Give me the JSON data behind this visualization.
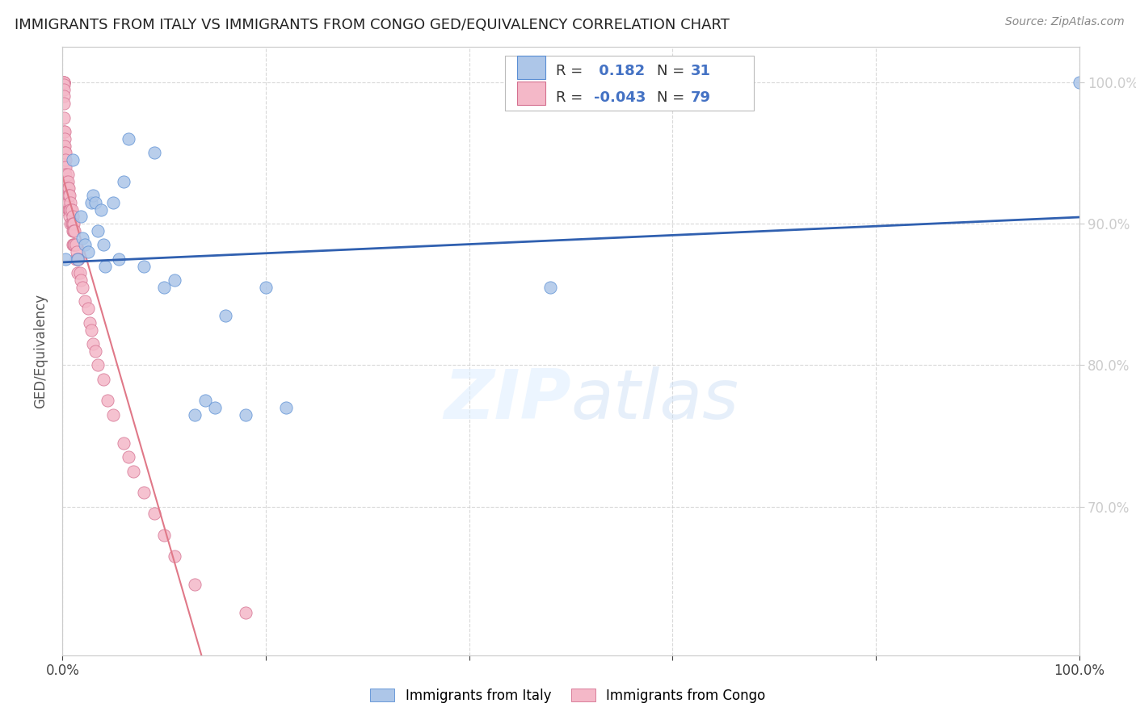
{
  "title": "IMMIGRANTS FROM ITALY VS IMMIGRANTS FROM CONGO GED/EQUIVALENCY CORRELATION CHART",
  "source": "Source: ZipAtlas.com",
  "ylabel": "GED/Equivalency",
  "xmin": 0.0,
  "xmax": 1.0,
  "ymin": 0.595,
  "ymax": 1.025,
  "yticks": [
    0.7,
    0.8,
    0.9,
    1.0
  ],
  "ytick_labels": [
    "70.0%",
    "80.0%",
    "90.0%",
    "100.0%"
  ],
  "R_italy": 0.182,
  "N_italy": 31,
  "R_congo": -0.043,
  "N_congo": 79,
  "color_italy": "#adc6e8",
  "color_congo": "#f4b8c8",
  "edge_italy": "#5b8fd4",
  "edge_congo": "#d47090",
  "line_italy_color": "#3060b0",
  "line_congo_color": "#e8a0b0",
  "italy_x": [
    0.003,
    0.01,
    0.015,
    0.018,
    0.02,
    0.022,
    0.025,
    0.028,
    0.03,
    0.032,
    0.035,
    0.038,
    0.04,
    0.042,
    0.05,
    0.055,
    0.06,
    0.065,
    0.08,
    0.09,
    0.1,
    0.11,
    0.13,
    0.14,
    0.15,
    0.16,
    0.18,
    0.2,
    0.22,
    0.48,
    1.0
  ],
  "italy_y": [
    0.875,
    0.945,
    0.875,
    0.905,
    0.89,
    0.885,
    0.88,
    0.915,
    0.92,
    0.915,
    0.895,
    0.91,
    0.885,
    0.87,
    0.915,
    0.875,
    0.93,
    0.96,
    0.87,
    0.95,
    0.855,
    0.86,
    0.765,
    0.775,
    0.77,
    0.835,
    0.765,
    0.855,
    0.77,
    0.855,
    1.0
  ],
  "congo_x": [
    0.001,
    0.001,
    0.001,
    0.001,
    0.001,
    0.001,
    0.001,
    0.001,
    0.001,
    0.001,
    0.002,
    0.002,
    0.002,
    0.002,
    0.002,
    0.002,
    0.002,
    0.003,
    0.003,
    0.003,
    0.003,
    0.003,
    0.003,
    0.004,
    0.004,
    0.004,
    0.004,
    0.005,
    0.005,
    0.005,
    0.005,
    0.006,
    0.006,
    0.006,
    0.007,
    0.007,
    0.007,
    0.008,
    0.008,
    0.008,
    0.009,
    0.009,
    0.01,
    0.01,
    0.01,
    0.01,
    0.011,
    0.011,
    0.011,
    0.012,
    0.012,
    0.013,
    0.013,
    0.014,
    0.015,
    0.015,
    0.016,
    0.017,
    0.018,
    0.02,
    0.022,
    0.025,
    0.027,
    0.028,
    0.03,
    0.032,
    0.035,
    0.04,
    0.044,
    0.05,
    0.06,
    0.065,
    0.07,
    0.08,
    0.09,
    0.1,
    0.11,
    0.13,
    0.18
  ],
  "congo_y": [
    1.0,
    1.0,
    1.0,
    0.998,
    0.995,
    0.99,
    0.985,
    0.975,
    0.965,
    0.955,
    0.965,
    0.96,
    0.955,
    0.95,
    0.945,
    0.94,
    0.935,
    0.95,
    0.945,
    0.94,
    0.935,
    0.93,
    0.925,
    0.93,
    0.925,
    0.92,
    0.91,
    0.935,
    0.93,
    0.925,
    0.915,
    0.925,
    0.92,
    0.91,
    0.92,
    0.91,
    0.905,
    0.915,
    0.91,
    0.9,
    0.91,
    0.9,
    0.905,
    0.9,
    0.895,
    0.885,
    0.9,
    0.895,
    0.885,
    0.895,
    0.885,
    0.885,
    0.875,
    0.88,
    0.875,
    0.865,
    0.875,
    0.865,
    0.86,
    0.855,
    0.845,
    0.84,
    0.83,
    0.825,
    0.815,
    0.81,
    0.8,
    0.79,
    0.775,
    0.765,
    0.745,
    0.735,
    0.725,
    0.71,
    0.695,
    0.68,
    0.665,
    0.645,
    0.625
  ]
}
